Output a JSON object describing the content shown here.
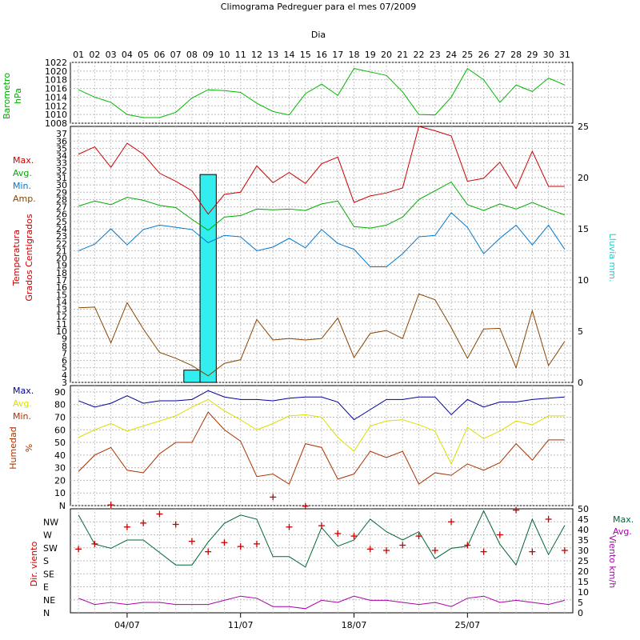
{
  "title": "Climograma Pedreguer para el mes 07/2009",
  "x_axis_title": "Dia",
  "day_labels": [
    "01",
    "02",
    "03",
    "04",
    "05",
    "06",
    "07",
    "08",
    "09",
    "10",
    "11",
    "12",
    "13",
    "14",
    "15",
    "16",
    "17",
    "18",
    "19",
    "20",
    "21",
    "22",
    "23",
    "24",
    "25",
    "26",
    "27",
    "28",
    "29",
    "30",
    "31"
  ],
  "week_labels": [
    {
      "day": 4,
      "label": "04/07"
    },
    {
      "day": 11,
      "label": "11/07"
    },
    {
      "day": 18,
      "label": "18/07"
    },
    {
      "day": 25,
      "label": "25/07"
    }
  ],
  "chart_data": [
    {
      "type": "line",
      "panel": "barometer",
      "title": "",
      "ylabel": [
        "Barometro",
        "hPa"
      ],
      "x": [
        1,
        2,
        3,
        4,
        5,
        6,
        7,
        8,
        9,
        10,
        11,
        12,
        13,
        14,
        15,
        16,
        17,
        18,
        19,
        20,
        21,
        22,
        23,
        24,
        25,
        26,
        27,
        28,
        29,
        30,
        31
      ],
      "ylim": [
        1008,
        1022
      ],
      "yticks": [
        1008,
        1010,
        1012,
        1014,
        1016,
        1018,
        1020,
        1022
      ],
      "series": [
        {
          "color": "#00bb00",
          "values": [
            1015.7,
            1014.0,
            1012.8,
            1010.0,
            1009.3,
            1009.3,
            1010.5,
            1013.8,
            1015.7,
            1015.5,
            1015.1,
            1012.6,
            1010.7,
            1009.9,
            1014.8,
            1017.0,
            1014.4,
            1020.6,
            1019.8,
            1019.0,
            1015.2,
            1010.0,
            1009.9,
            1014.0,
            1020.6,
            1018.0,
            1012.8,
            1016.8,
            1015.3,
            1018.4,
            1016.8
          ]
        }
      ]
    },
    {
      "type": "line",
      "panel": "temperature",
      "title": "",
      "ylabel": [
        "Temperatura",
        "Grados Centigrados"
      ],
      "y2label": "Lluvia mm.",
      "legend": [
        "Max.",
        "Avg.",
        "Min.",
        "Amp."
      ],
      "x": [
        1,
        2,
        3,
        4,
        5,
        6,
        7,
        8,
        9,
        10,
        11,
        12,
        13,
        14,
        15,
        16,
        17,
        18,
        19,
        20,
        21,
        22,
        23,
        24,
        25,
        26,
        27,
        28,
        29,
        30,
        31
      ],
      "ylim": [
        3,
        38
      ],
      "y2lim": [
        0,
        25
      ],
      "yticks": [
        3,
        4,
        5,
        6,
        7,
        8,
        9,
        10,
        11,
        12,
        13,
        14,
        15,
        16,
        17,
        18,
        19,
        20,
        21,
        22,
        23,
        24,
        25,
        26,
        27,
        28,
        29,
        30,
        31,
        32,
        33,
        34,
        35,
        36,
        37
      ],
      "y2ticks": [
        0,
        5,
        10,
        15,
        20,
        25
      ],
      "series": [
        {
          "name": "Max.",
          "color": "#cc0000",
          "values": [
            34.2,
            35.2,
            32.4,
            35.7,
            34.2,
            31.6,
            30.5,
            29.2,
            26.0,
            28.7,
            29.0,
            32.6,
            30.3,
            31.7,
            30.2,
            32.9,
            33.8,
            27.6,
            28.5,
            28.9,
            29.6,
            38.0,
            37.4,
            36.7,
            30.5,
            30.9,
            33.1,
            29.5,
            34.6,
            29.8,
            29.8
          ]
        },
        {
          "name": "Avg.",
          "color": "#00aa00",
          "values": [
            27.1,
            27.8,
            27.3,
            28.3,
            27.9,
            27.2,
            26.9,
            25.3,
            23.8,
            25.6,
            25.8,
            26.7,
            26.6,
            26.7,
            26.5,
            27.4,
            27.8,
            24.3,
            24.1,
            24.5,
            25.6,
            28.0,
            29.2,
            30.4,
            27.3,
            26.5,
            27.4,
            26.7,
            27.6,
            26.7,
            25.9
          ]
        },
        {
          "name": "Min.",
          "color": "#0077cc",
          "values": [
            21.0,
            21.9,
            24.0,
            21.8,
            23.9,
            24.5,
            24.2,
            23.9,
            22.1,
            23.1,
            22.9,
            21.0,
            21.5,
            22.7,
            21.4,
            23.9,
            22.0,
            21.2,
            18.8,
            18.8,
            20.6,
            22.9,
            23.1,
            26.2,
            24.2,
            20.6,
            22.7,
            24.5,
            21.8,
            24.5,
            21.2
          ]
        },
        {
          "name": "Amp.",
          "color": "#884400",
          "values": [
            13.2,
            13.3,
            8.4,
            13.9,
            10.3,
            7.1,
            6.3,
            5.3,
            3.9,
            5.6,
            6.1,
            11.6,
            8.8,
            9.0,
            8.8,
            9.0,
            11.8,
            6.4,
            9.7,
            10.1,
            9.0,
            15.1,
            14.3,
            10.5,
            6.3,
            10.3,
            10.4,
            5.0,
            12.8,
            5.3,
            8.6
          ]
        }
      ],
      "bars": {
        "name": "Lluvia",
        "color": "#33eeee",
        "axis": "y2",
        "days": [
          8,
          9
        ],
        "values": [
          1.2,
          20.3
        ]
      }
    },
    {
      "type": "line",
      "panel": "humidity",
      "title": "",
      "ylabel": [
        "Humedad",
        "%"
      ],
      "legend": [
        "Max.",
        "Avg.",
        "Min."
      ],
      "x": [
        1,
        2,
        3,
        4,
        5,
        6,
        7,
        8,
        9,
        10,
        11,
        12,
        13,
        14,
        15,
        16,
        17,
        18,
        19,
        20,
        21,
        22,
        23,
        24,
        25,
        26,
        27,
        28,
        29,
        30,
        31
      ],
      "ylim": [
        0,
        95
      ],
      "yticks": [
        "N",
        10,
        20,
        30,
        40,
        50,
        60,
        70,
        80,
        90
      ],
      "series": [
        {
          "name": "Max.",
          "color": "#000099",
          "values": [
            83,
            78,
            81,
            87,
            81,
            83,
            83,
            84,
            91,
            86,
            84,
            84,
            83,
            85,
            86,
            86,
            82,
            68,
            76,
            84,
            84,
            86,
            86,
            72,
            84,
            78,
            82,
            82,
            84,
            85,
            86
          ]
        },
        {
          "name": "Avg.",
          "color": "#dddd00",
          "values": [
            54,
            60,
            65,
            59,
            63,
            67,
            71,
            78,
            84,
            75,
            68,
            60,
            65,
            71,
            72,
            70,
            54,
            43,
            63,
            67,
            68,
            64,
            59,
            33,
            62,
            53,
            59,
            67,
            64,
            71,
            71
          ]
        },
        {
          "name": "Min.",
          "color": "#aa3300",
          "values": [
            27,
            40,
            46,
            28,
            26,
            41,
            50,
            50,
            74,
            60,
            51,
            23,
            25,
            17,
            49,
            46,
            21,
            25,
            43,
            38,
            43,
            17,
            26,
            24,
            33,
            28,
            34,
            49,
            36,
            52,
            52
          ]
        }
      ]
    },
    {
      "type": "line",
      "panel": "wind",
      "title": "",
      "ylabel": "Dir. viento",
      "y2label": "Viento km/h",
      "legend": [
        "Max.",
        "Avg."
      ],
      "x": [
        1,
        2,
        3,
        4,
        5,
        6,
        7,
        8,
        9,
        10,
        11,
        12,
        13,
        14,
        15,
        16,
        17,
        18,
        19,
        20,
        21,
        22,
        23,
        24,
        25,
        26,
        27,
        28,
        29,
        30,
        31
      ],
      "direction_ticks": [
        "N",
        "NE",
        "E",
        "SE",
        "S",
        "SW",
        "W",
        "NW"
      ],
      "y2lim": [
        0,
        50
      ],
      "y2ticks": [
        0,
        5,
        10,
        15,
        20,
        25,
        30,
        35,
        40,
        45,
        50
      ],
      "series": [
        {
          "name": "Max.",
          "color": "#006633",
          "values": [
            47,
            33,
            31,
            35,
            35,
            29,
            23,
            23,
            34,
            43,
            47,
            45,
            27,
            27,
            22,
            41,
            32,
            35,
            45,
            39,
            35,
            39,
            26,
            31,
            32,
            49,
            33,
            23,
            45,
            28,
            42
          ]
        },
        {
          "name": "Avg.",
          "color": "#aa00aa",
          "values": [
            7,
            4,
            5,
            4,
            5,
            5,
            4,
            4,
            4,
            6,
            8,
            7,
            3,
            3,
            2,
            6,
            5,
            8,
            6,
            6,
            5,
            4,
            5,
            3,
            7,
            8,
            5,
            6,
            5,
            4,
            6
          ]
        }
      ],
      "direction_marks": {
        "color": "#cc0000",
        "values": [
          4.9,
          5.3,
          8.3,
          6.6,
          6.9,
          7.6,
          6.8,
          5.5,
          4.7,
          5.4,
          5.1,
          5.3,
          8.9,
          6.6,
          8.2,
          6.7,
          6.1,
          5.9,
          4.9,
          4.8,
          5.2,
          5.9,
          4.8,
          7.0,
          5.2,
          4.7,
          6.0,
          7.9,
          4.7,
          7.2,
          4.8
        ]
      }
    }
  ]
}
